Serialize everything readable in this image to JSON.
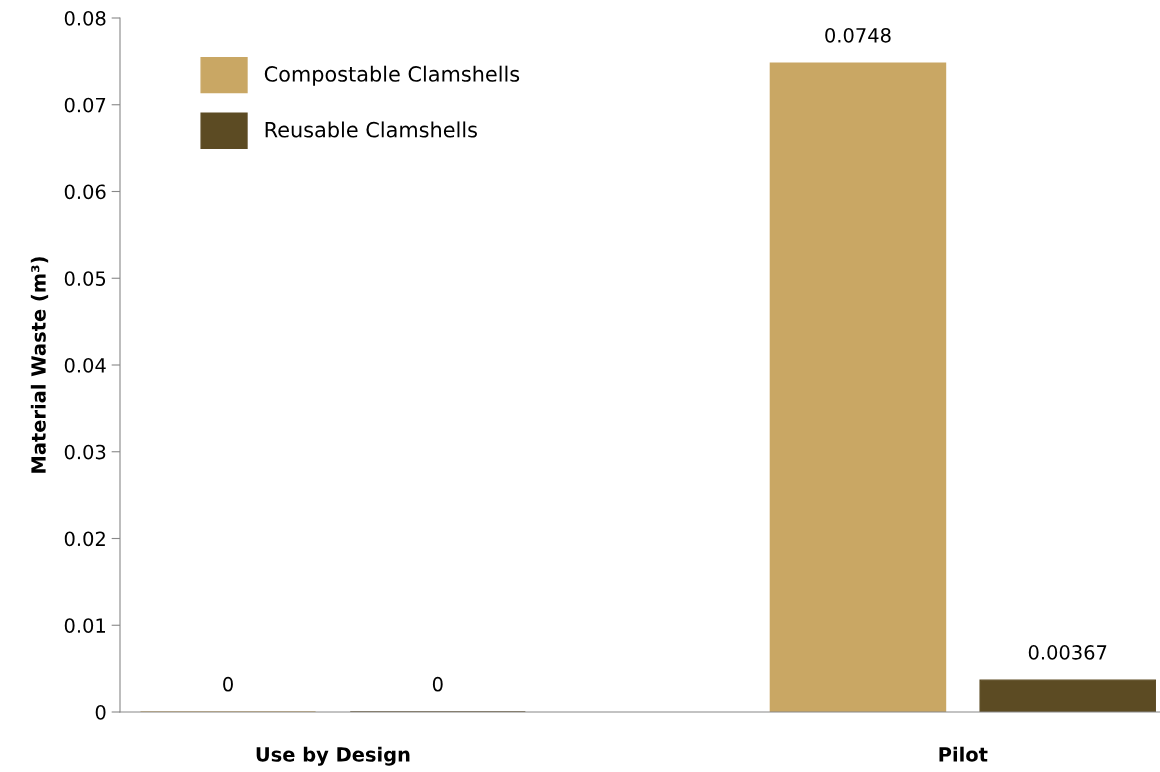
{
  "chart_data": {
    "type": "bar",
    "ylabel": "Material Waste (m³)",
    "categories": [
      "Use by Design",
      "Pilot"
    ],
    "series": [
      {
        "name": "Compostable Clamshells",
        "color": "#c9a764",
        "values": [
          0,
          0.0748
        ]
      },
      {
        "name": "Reusable Clamshells",
        "color": "#5c4b23",
        "values": [
          0,
          0.00367
        ]
      }
    ],
    "ylim": [
      0,
      0.08
    ],
    "yticks": [
      0,
      0.01,
      0.02,
      0.03,
      0.04,
      0.05,
      0.06,
      0.07,
      0.08
    ],
    "data_labels": true,
    "legend": "top left",
    "grid": false
  }
}
